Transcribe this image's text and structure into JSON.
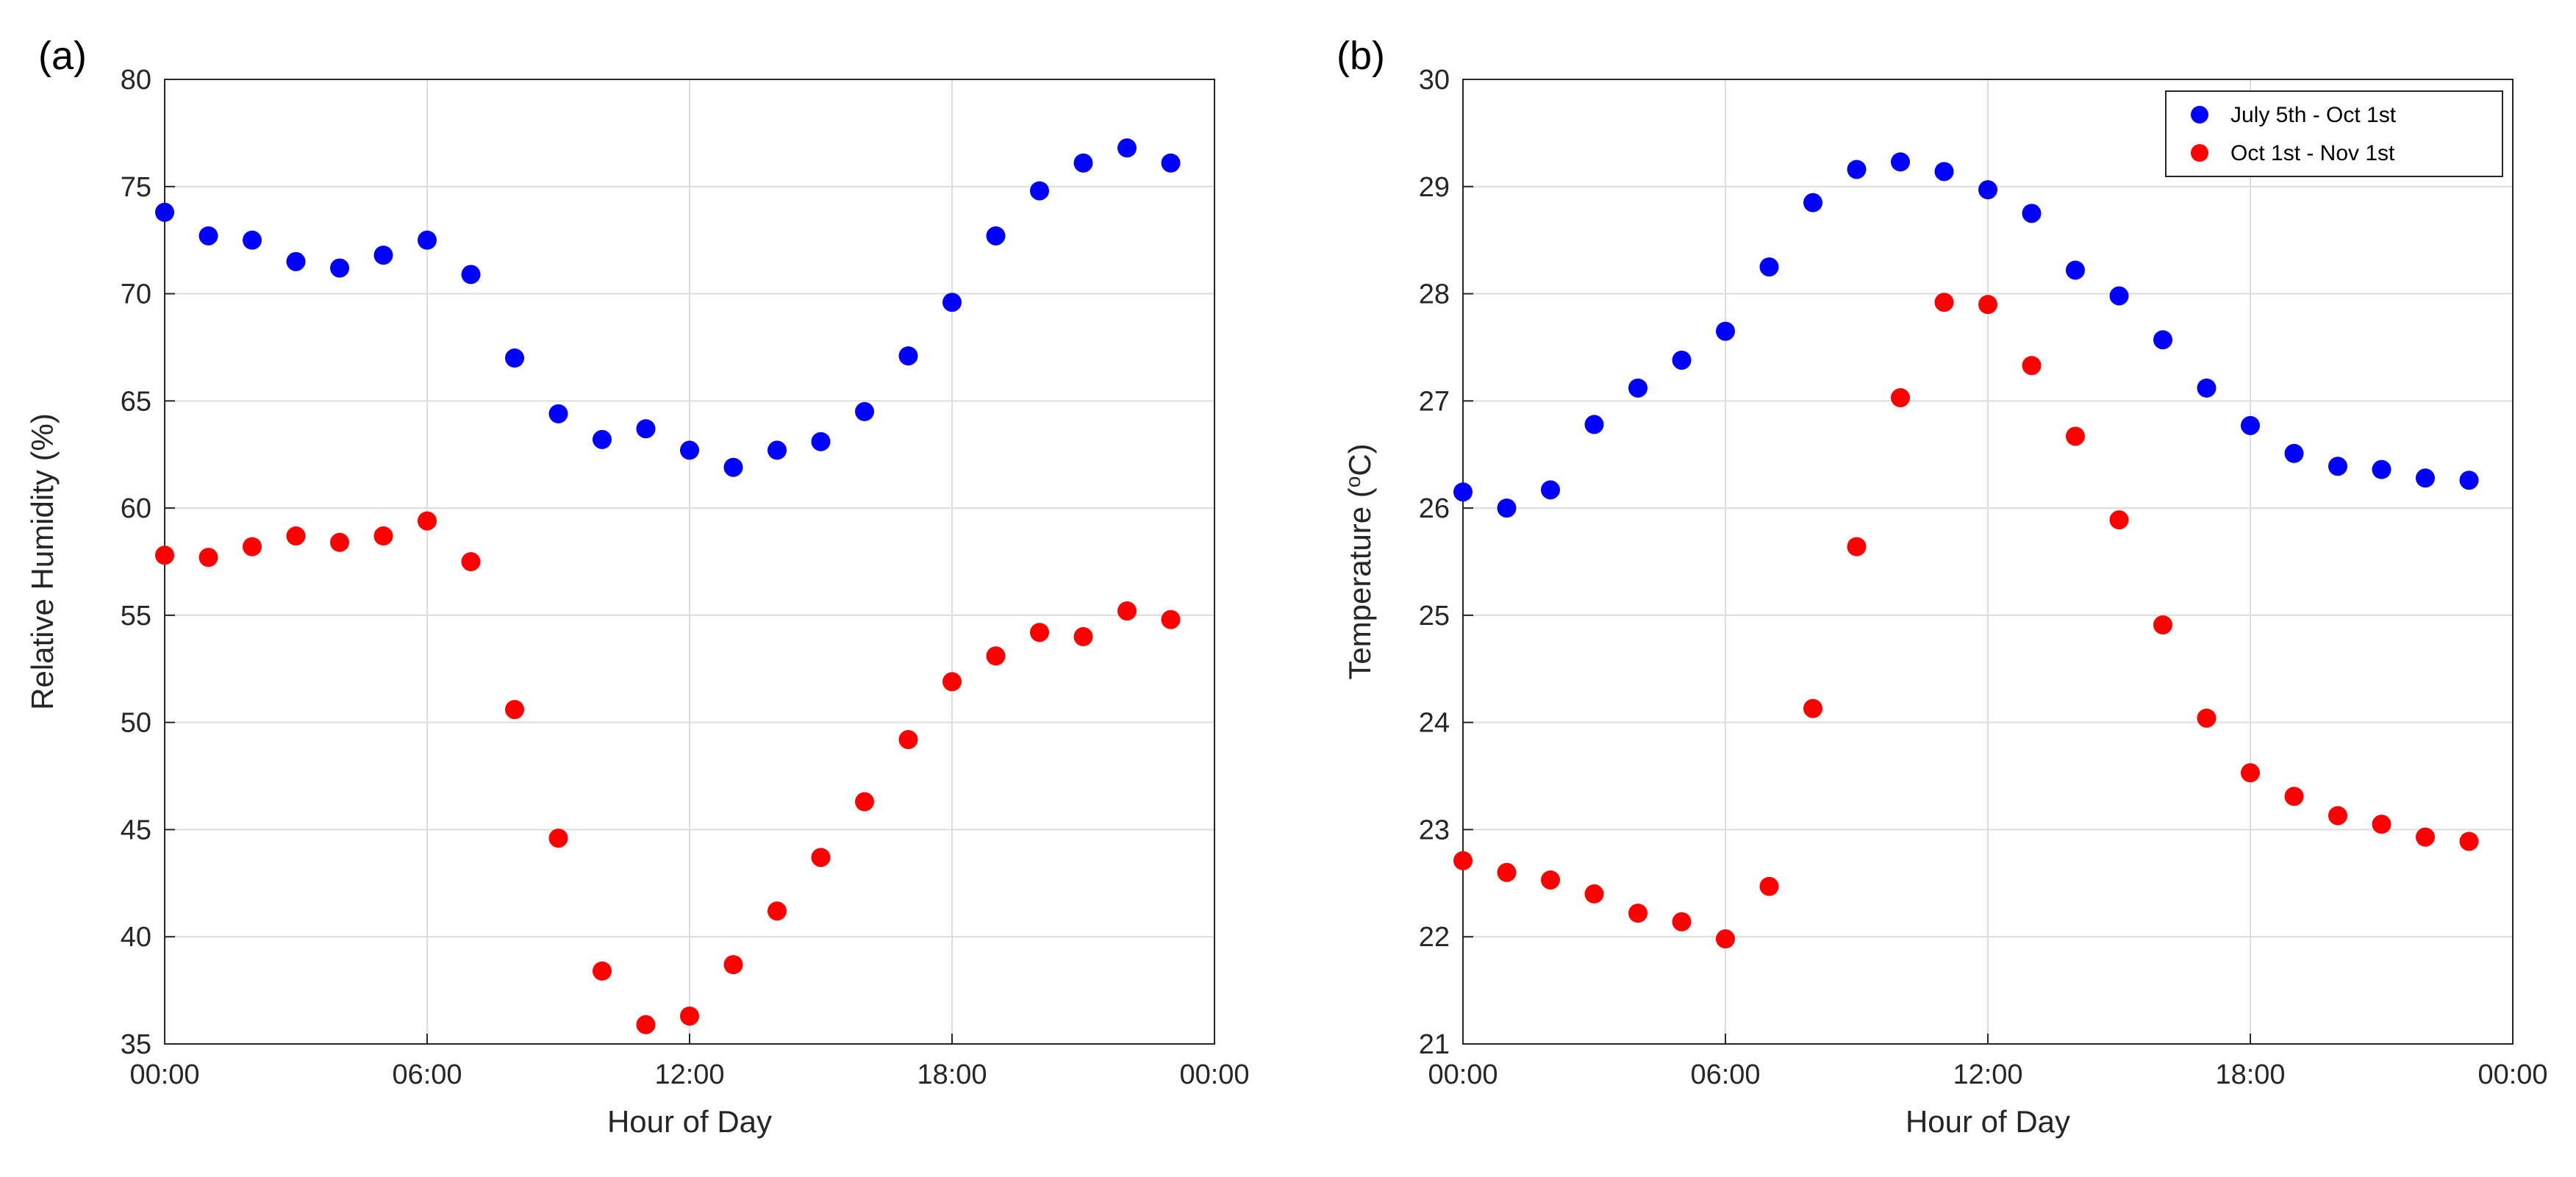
{
  "colors": {
    "series1": "#0000ff",
    "series2": "#ff0000",
    "grid": "#dcdcdc",
    "axis": "#262626"
  },
  "chart_data": [
    {
      "type": "scatter",
      "panel_label": "(a)",
      "xlabel": "Hour of Day",
      "ylabel": "Relative Humidity (%)",
      "xlim": [
        0,
        24
      ],
      "ylim": [
        35,
        80
      ],
      "xticks": [
        0,
        6,
        12,
        18,
        24
      ],
      "xtick_labels": [
        "00:00",
        "06:00",
        "12:00",
        "18:00",
        "00:00"
      ],
      "yticks": [
        35,
        40,
        45,
        50,
        55,
        60,
        65,
        70,
        75,
        80
      ],
      "ytick_labels": [
        "35",
        "40",
        "45",
        "50",
        "55",
        "60",
        "65",
        "70",
        "75",
        "80"
      ],
      "grid": true,
      "x": [
        0,
        1,
        2,
        3,
        4,
        5,
        6,
        7,
        8,
        9,
        10,
        11,
        12,
        13,
        14,
        15,
        16,
        17,
        18,
        19,
        20,
        21,
        22,
        23
      ],
      "series": [
        {
          "name": "July 5th - Oct 1st",
          "color": "#0000ff",
          "values": [
            73.8,
            72.7,
            72.5,
            71.5,
            71.2,
            71.8,
            72.5,
            70.9,
            67.0,
            64.4,
            63.2,
            63.7,
            62.7,
            61.9,
            62.7,
            63.1,
            64.5,
            67.1,
            69.6,
            72.7,
            74.8,
            76.1,
            76.8,
            76.1
          ]
        },
        {
          "name": "Oct 1st - Nov 1st",
          "color": "#ff0000",
          "values": [
            57.8,
            57.7,
            58.2,
            58.7,
            58.4,
            58.7,
            59.4,
            57.5,
            50.6,
            44.6,
            38.4,
            35.9,
            36.3,
            38.7,
            41.2,
            43.7,
            46.3,
            49.2,
            51.9,
            53.1,
            54.2,
            54.0,
            55.2,
            54.8
          ]
        }
      ]
    },
    {
      "type": "scatter",
      "panel_label": "(b)",
      "xlabel": "Hour of Day",
      "ylabel": "Temperature (",
      "ylabel_sup": "o",
      "ylabel_tail": "C)",
      "xlim": [
        0,
        24
      ],
      "ylim": [
        21,
        30
      ],
      "xticks": [
        0,
        6,
        12,
        18,
        24
      ],
      "xtick_labels": [
        "00:00",
        "06:00",
        "12:00",
        "18:00",
        "00:00"
      ],
      "yticks": [
        21,
        22,
        23,
        24,
        25,
        26,
        27,
        28,
        29,
        30
      ],
      "ytick_labels": [
        "21",
        "22",
        "23",
        "24",
        "25",
        "26",
        "27",
        "28",
        "29",
        "30"
      ],
      "grid": true,
      "legend": {
        "position": "top-right",
        "entries": [
          "July 5th - Oct 1st",
          "Oct 1st - Nov 1st"
        ]
      },
      "x": [
        0,
        1,
        2,
        3,
        4,
        5,
        6,
        7,
        8,
        9,
        10,
        11,
        12,
        13,
        14,
        15,
        16,
        17,
        18,
        19,
        20,
        21,
        22,
        23
      ],
      "series": [
        {
          "name": "July 5th - Oct 1st",
          "color": "#0000ff",
          "values": [
            26.15,
            26.0,
            26.17,
            26.78,
            27.12,
            27.38,
            27.65,
            28.25,
            28.85,
            29.16,
            29.23,
            29.14,
            28.97,
            28.75,
            28.22,
            27.98,
            27.57,
            27.12,
            26.77,
            26.51,
            26.39,
            26.36,
            26.28,
            26.26
          ]
        },
        {
          "name": "Oct 1st - Nov 1st",
          "color": "#ff0000",
          "values": [
            22.71,
            22.6,
            22.53,
            22.4,
            22.22,
            22.14,
            21.98,
            22.47,
            24.13,
            25.64,
            27.03,
            27.92,
            27.9,
            27.33,
            26.67,
            25.89,
            24.91,
            24.04,
            23.53,
            23.31,
            23.13,
            23.05,
            22.93,
            22.89
          ]
        }
      ]
    }
  ]
}
